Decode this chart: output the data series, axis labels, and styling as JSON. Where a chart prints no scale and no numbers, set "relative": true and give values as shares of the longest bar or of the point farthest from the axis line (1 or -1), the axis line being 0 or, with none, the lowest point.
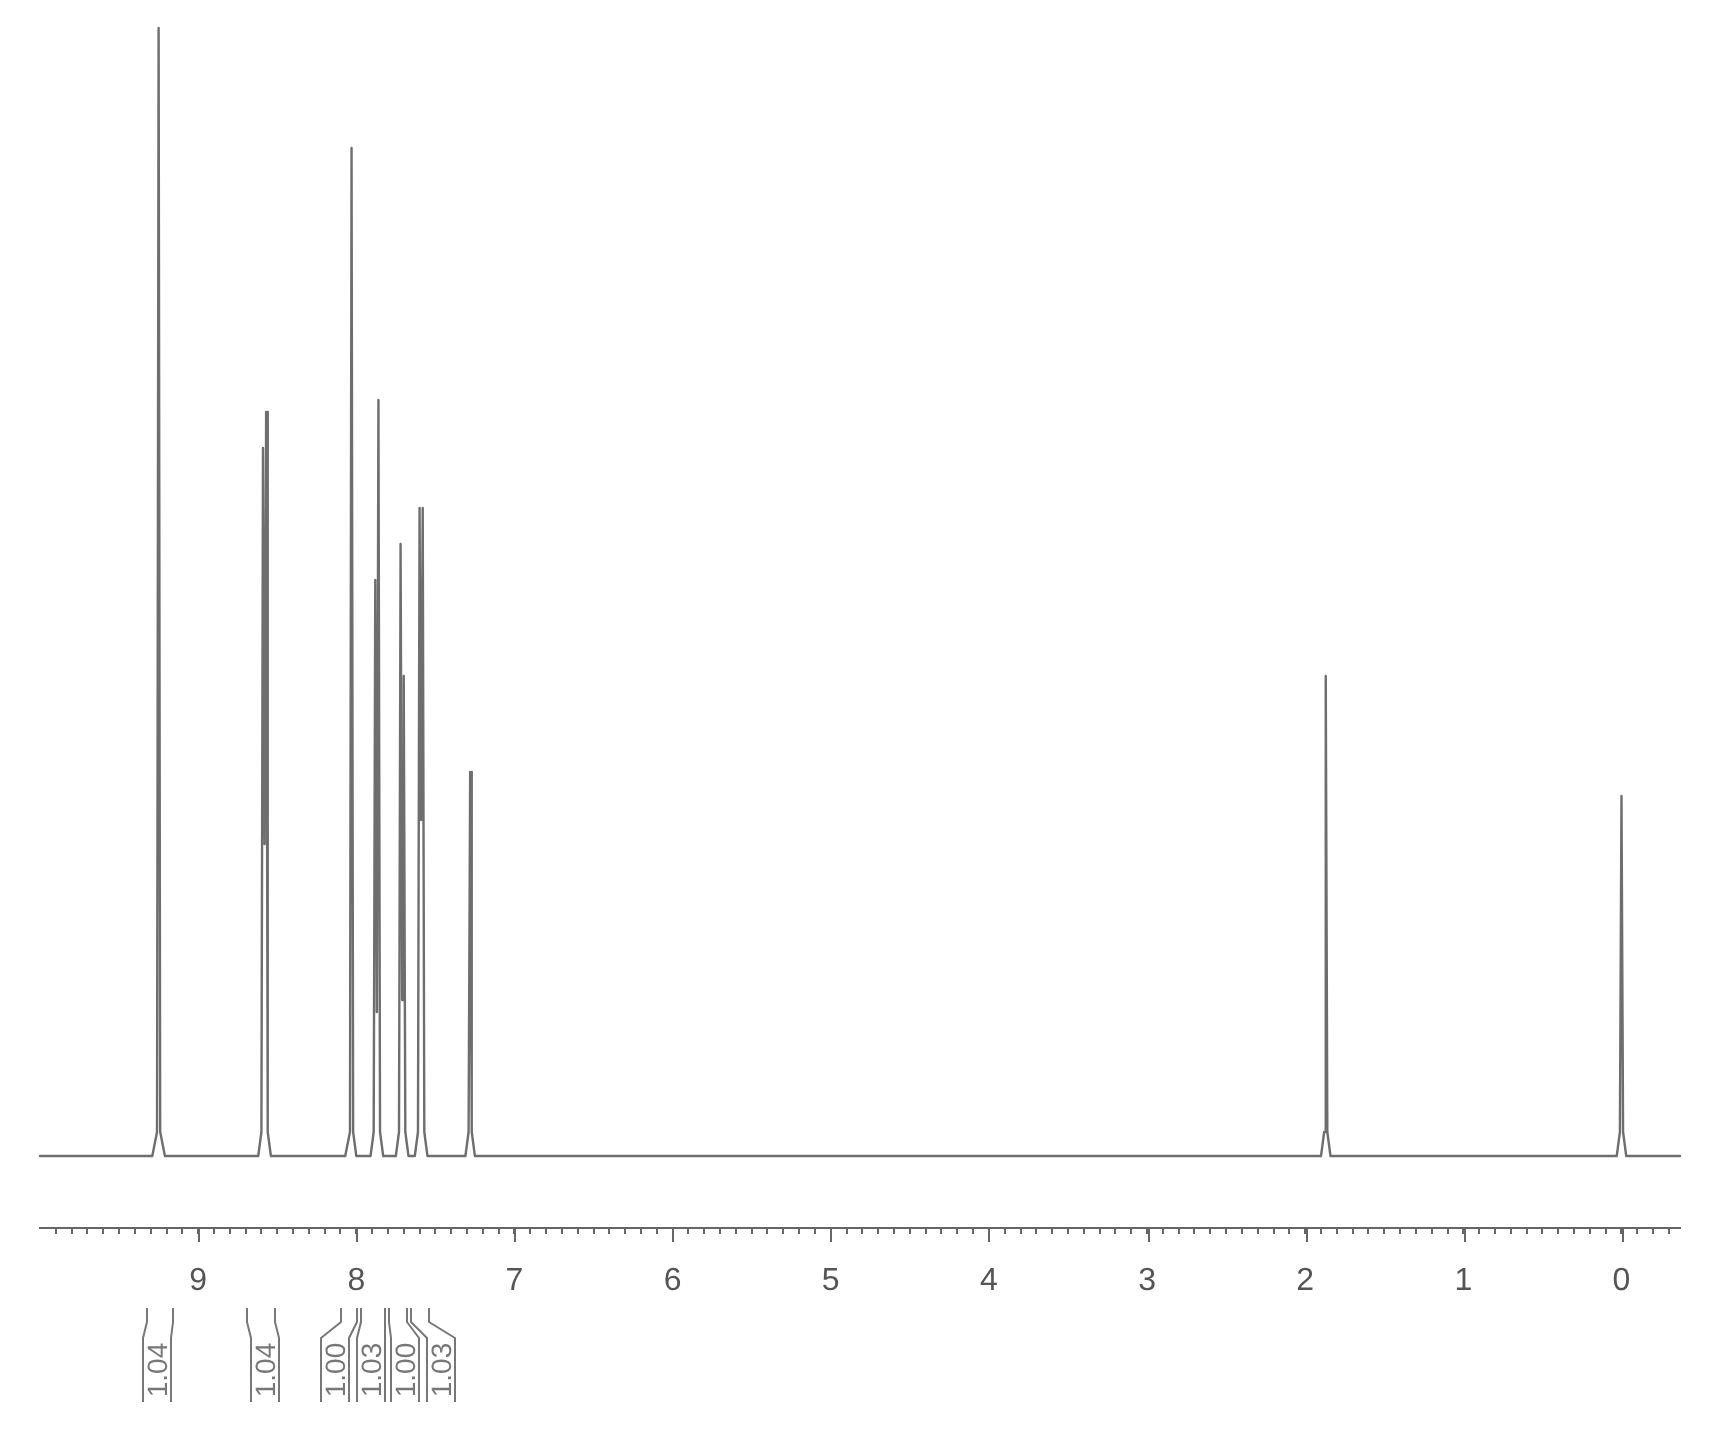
{
  "chart_data": {
    "type": "line",
    "relative": true,
    "color": "#6e6e6e",
    "marker": "none",
    "xlim": [
      10,
      -0.37
    ],
    "xticks": [
      {
        "value": -0.3,
        "label": null
      },
      {
        "value": -0.2,
        "label": null
      },
      {
        "value": -0.1,
        "label": null
      },
      0,
      {
        "value": 0.1,
        "label": null
      },
      {
        "value": 0.2,
        "label": null
      },
      {
        "value": 0.3,
        "label": null
      },
      {
        "value": 0.4,
        "label": null
      },
      {
        "value": 0.5,
        "label": null
      },
      {
        "value": 0.6,
        "label": null
      },
      {
        "value": 0.7,
        "label": null
      },
      {
        "value": 0.8,
        "label": null
      },
      {
        "value": 0.9,
        "label": null
      },
      1,
      {
        "value": 1.1,
        "label": null
      },
      {
        "value": 1.2,
        "label": null
      },
      {
        "value": 1.3,
        "label": null
      },
      {
        "value": 1.4,
        "label": null
      },
      {
        "value": 1.5,
        "label": null
      },
      {
        "value": 1.6,
        "label": null
      },
      {
        "value": 1.7,
        "label": null
      },
      {
        "value": 1.8,
        "label": null
      },
      {
        "value": 1.9,
        "label": null
      },
      2,
      {
        "value": 2.1,
        "label": null
      },
      {
        "value": 2.2,
        "label": null
      },
      {
        "value": 2.3,
        "label": null
      },
      {
        "value": 2.4,
        "label": null
      },
      {
        "value": 2.5,
        "label": null
      },
      {
        "value": 2.6,
        "label": null
      },
      {
        "value": 2.7,
        "label": null
      },
      {
        "value": 2.8,
        "label": null
      },
      {
        "value": 2.9,
        "label": null
      },
      3,
      {
        "value": 3.1,
        "label": null
      },
      {
        "value": 3.2,
        "label": null
      },
      {
        "value": 3.3,
        "label": null
      },
      {
        "value": 3.4,
        "label": null
      },
      {
        "value": 3.5,
        "label": null
      },
      {
        "value": 3.6,
        "label": null
      },
      {
        "value": 3.7,
        "label": null
      },
      {
        "value": 3.8,
        "label": null
      },
      {
        "value": 3.9,
        "label": null
      },
      4,
      {
        "value": 4.1,
        "label": null
      },
      {
        "value": 4.2,
        "label": null
      },
      {
        "value": 4.3,
        "label": null
      },
      {
        "value": 4.4,
        "label": null
      },
      {
        "value": 4.5,
        "label": null
      },
      {
        "value": 4.6,
        "label": null
      },
      {
        "value": 4.7,
        "label": null
      },
      {
        "value": 4.8,
        "label": null
      },
      {
        "value": 4.9,
        "label": null
      },
      5,
      {
        "value": 5.1,
        "label": null
      },
      {
        "value": 5.2,
        "label": null
      },
      {
        "value": 5.3,
        "label": null
      },
      {
        "value": 5.4,
        "label": null
      },
      {
        "value": 5.5,
        "label": null
      },
      {
        "value": 5.6,
        "label": null
      },
      {
        "value": 5.7,
        "label": null
      },
      {
        "value": 5.8,
        "label": null
      },
      {
        "value": 5.9,
        "label": null
      },
      6,
      {
        "value": 6.1,
        "label": null
      },
      {
        "value": 6.2,
        "label": null
      },
      {
        "value": 6.3,
        "label": null
      },
      {
        "value": 6.4,
        "label": null
      },
      {
        "value": 6.5,
        "label": null
      },
      {
        "value": 6.6,
        "label": null
      },
      {
        "value": 6.7,
        "label": null
      },
      {
        "value": 6.8,
        "label": null
      },
      {
        "value": 6.9,
        "label": null
      },
      7,
      {
        "value": 7.1,
        "label": null
      },
      {
        "value": 7.2,
        "label": null
      },
      {
        "value": 7.3,
        "label": null
      },
      {
        "value": 7.4,
        "label": null
      },
      {
        "value": 7.5,
        "label": null
      },
      {
        "value": 7.6,
        "label": null
      },
      {
        "value": 7.7,
        "label": null
      },
      {
        "value": 7.8,
        "label": null
      },
      {
        "value": 7.9,
        "label": null
      },
      8,
      {
        "value": 8.1,
        "label": null
      },
      {
        "value": 8.2,
        "label": null
      },
      {
        "value": 8.3,
        "label": null
      },
      {
        "value": 8.4,
        "label": null
      },
      {
        "value": 8.5,
        "label": null
      },
      {
        "value": 8.6,
        "label": null
      },
      {
        "value": 8.7,
        "label": null
      },
      {
        "value": 8.8,
        "label": null
      },
      {
        "value": 8.9,
        "label": null
      },
      9,
      {
        "value": 9.1,
        "label": null
      },
      {
        "value": 9.2,
        "label": null
      },
      {
        "value": 9.3,
        "label": null
      },
      {
        "value": 9.4,
        "label": null
      },
      {
        "value": 9.5,
        "label": null
      },
      {
        "value": 9.6,
        "label": null
      },
      {
        "value": 9.7,
        "label": null
      },
      {
        "value": 9.8,
        "label": null
      },
      {
        "value": 9.9,
        "label": null
      }
    ],
    "x": [
      10,
      9.29,
      9.26,
      9.25,
      9.24,
      9.21,
      8.62,
      8.6,
      8.59,
      8.58,
      8.57,
      8.56,
      8.54,
      8.07,
      8.04,
      8.03,
      8.02,
      8.0,
      7.91,
      7.89,
      7.88,
      7.87,
      7.86,
      7.85,
      7.83,
      7.75,
      7.73,
      7.72,
      7.71,
      7.7,
      7.69,
      7.67,
      7.63,
      7.61,
      7.6,
      7.59,
      7.58,
      7.57,
      7.55,
      7.31,
      7.29,
      7.28,
      7.27,
      7.25,
      1.9,
      1.88,
      1.87,
      1.86,
      1.84,
      0.03,
      0.01,
      0,
      -0.01,
      -0.03,
      -0.37
    ],
    "values": [
      0.06,
      0.06,
      0.08,
      1,
      0.08,
      0.06,
      0.06,
      0.08,
      0.65,
      0.32,
      0.68,
      0.08,
      0.06,
      0.06,
      0.08,
      0.9,
      0.08,
      0.06,
      0.06,
      0.08,
      0.54,
      0.18,
      0.69,
      0.08,
      0.06,
      0.06,
      0.08,
      0.57,
      0.19,
      0.46,
      0.08,
      0.06,
      0.06,
      0.08,
      0.6,
      0.34,
      0.6,
      0.08,
      0.06,
      0.06,
      0.08,
      0.38,
      0.08,
      0.06,
      0.06,
      0.08,
      0.46,
      0.08,
      0.06,
      0.06,
      0.08,
      0.36,
      0.08,
      0.06,
      0.06
    ],
    "annotations": [
      "1.04",
      "1.04",
      "1.00",
      "1.03",
      "1.00",
      "1.03"
    ]
  }
}
